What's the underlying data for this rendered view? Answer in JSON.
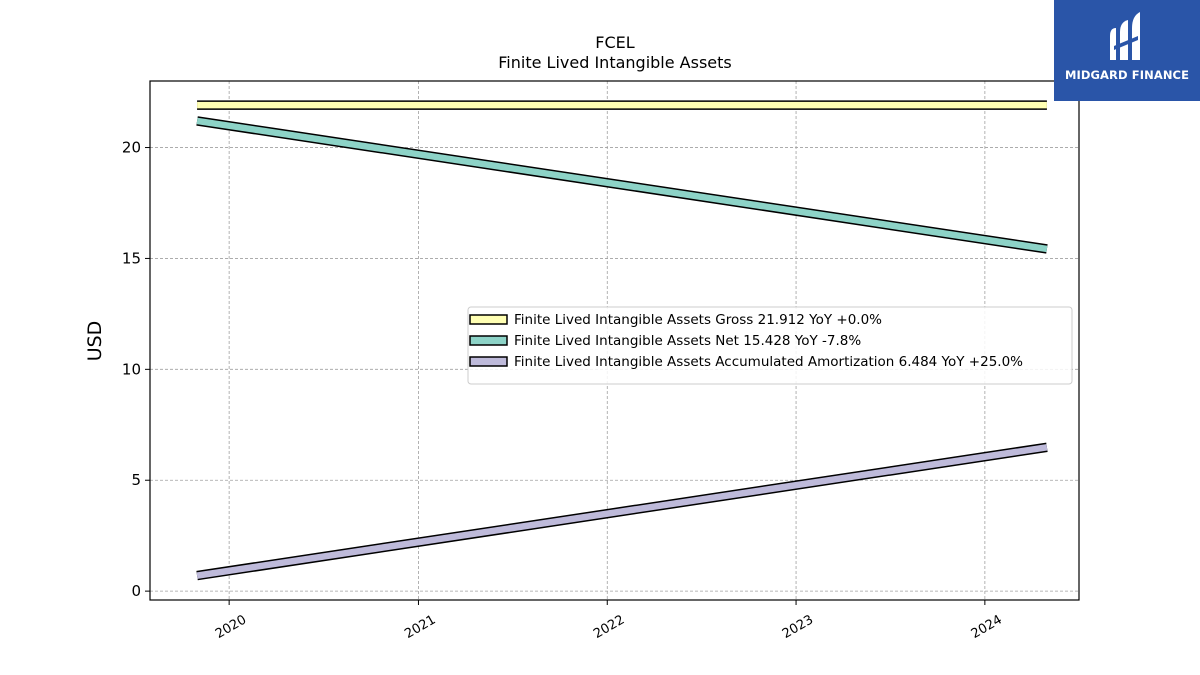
{
  "logo": {
    "text": "MIDGARD FINANCE",
    "icon": "midgard-logo-icon"
  },
  "chart_data": {
    "type": "line",
    "title": "FCEL",
    "subtitle": "Finite Lived Intangible Assets",
    "ylabel": "USD",
    "xlabel": "",
    "xlim": [
      "2019-08-01",
      "2024-07-01"
    ],
    "ylim": [
      -0.4,
      23
    ],
    "yticks": [
      0,
      5,
      10,
      15,
      20
    ],
    "xticks": [
      "2020",
      "2021",
      "2022",
      "2023",
      "2024"
    ],
    "grid": true,
    "legend_position": "center-right",
    "x": [
      "2019-10-31",
      "2024-04-30"
    ],
    "series": [
      {
        "name": "Finite Lived Intangible Assets Gross  21.912 YoY +0.0%",
        "color": "#ffffb3",
        "values": [
          21.912,
          21.912
        ]
      },
      {
        "name": "Finite Lived Intangible Assets Net  15.428 YoY -7.8%",
        "color": "#8dd3c7",
        "values": [
          21.2,
          15.428
        ]
      },
      {
        "name": "Finite Lived Intangible Assets Accumulated Amortization  6.484 YoY +25.0%",
        "color": "#bebada",
        "values": [
          0.7,
          6.484
        ]
      }
    ]
  }
}
